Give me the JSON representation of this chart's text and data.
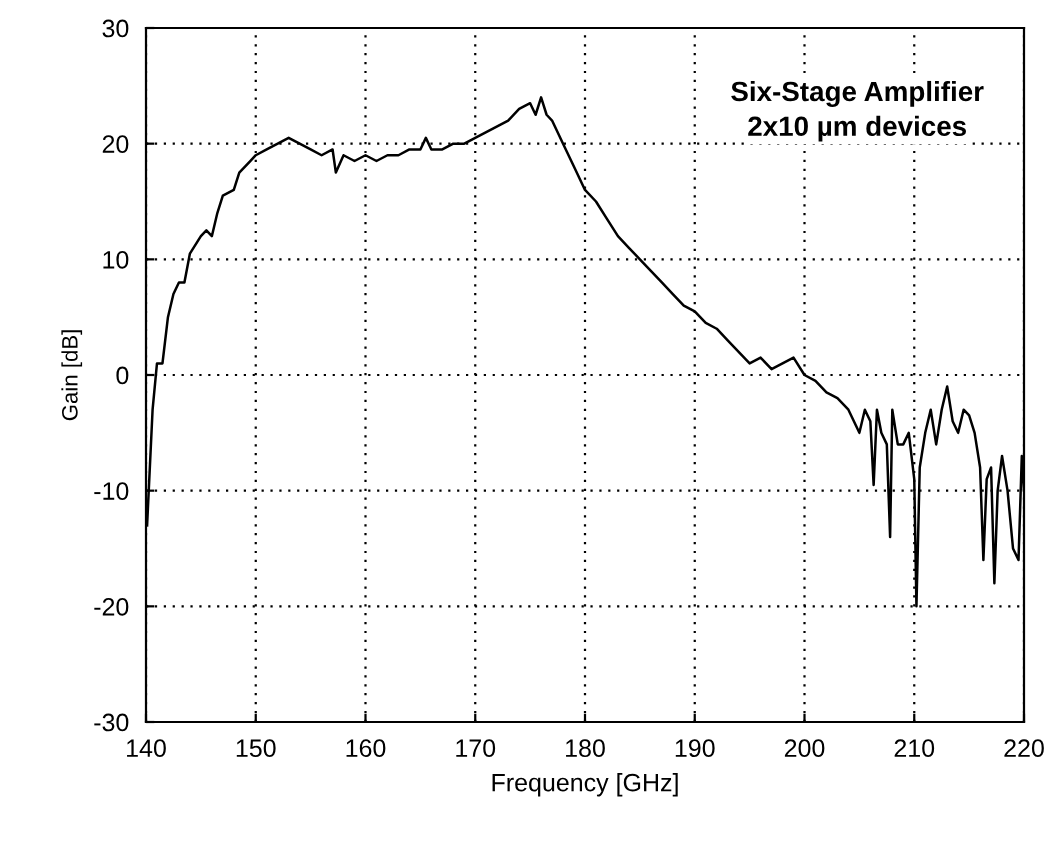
{
  "chart_data": {
    "type": "line",
    "xlabel": "Frequency [GHz]",
    "ylabel": "Gain [dB]",
    "annotations": [
      "Six-Stage Amplifier",
      "2x10 µm devices"
    ],
    "xlim": [
      140,
      220
    ],
    "xticks": [
      140,
      150,
      160,
      170,
      180,
      190,
      200,
      210,
      220
    ],
    "ylim": [
      -30,
      30
    ],
    "yticks": [
      -30,
      -20,
      -10,
      0,
      10,
      20,
      30
    ],
    "grid": true,
    "line_style": "solid",
    "marker": "none",
    "series": [
      {
        "color": "#000000",
        "x": [
          140.1,
          140.6,
          141,
          141.5,
          142,
          142.5,
          143,
          143.5,
          144,
          145,
          145.5,
          146,
          146.5,
          147,
          148,
          148.5,
          149.5,
          150,
          151,
          152,
          153,
          154,
          155,
          156,
          157,
          157.3,
          158,
          159,
          160,
          161,
          162,
          163,
          164,
          165,
          165.5,
          166,
          167,
          168,
          169,
          170,
          171,
          172,
          173,
          174,
          175,
          175.5,
          176,
          176.5,
          177,
          178,
          179,
          180,
          181,
          182,
          183,
          184,
          185,
          186,
          187,
          188,
          189,
          190,
          191,
          192,
          193,
          194,
          195,
          196,
          197,
          198,
          199,
          200,
          201,
          202,
          203,
          204,
          205,
          205.5,
          206,
          206.3,
          206.6,
          207,
          207.5,
          207.8,
          208,
          208.5,
          209,
          209.5,
          210,
          210.2,
          210.5,
          211,
          211.5,
          212,
          212.5,
          213,
          213.5,
          214,
          214.5,
          215,
          215.5,
          216,
          216.3,
          216.6,
          217,
          217.3,
          217.6,
          218,
          218.5,
          219,
          219.5,
          219.8,
          220
        ],
        "values": [
          -13,
          -3,
          1,
          1,
          5,
          7,
          8,
          8,
          10.5,
          12,
          12.5,
          12,
          14,
          15.5,
          16,
          17.5,
          18.5,
          19,
          19.5,
          20,
          20.5,
          20,
          19.5,
          19,
          19.5,
          17.5,
          19,
          18.5,
          19,
          18.5,
          19,
          19,
          19.5,
          19.5,
          20.5,
          19.5,
          19.5,
          20,
          20,
          20.5,
          21,
          21.5,
          22,
          23,
          23.5,
          22.5,
          24,
          22.5,
          22,
          20,
          18,
          16,
          15,
          13.5,
          12,
          11,
          10,
          9,
          8,
          7,
          6,
          5.5,
          4.5,
          4,
          3,
          2,
          1,
          1.5,
          0.5,
          1,
          1.5,
          0,
          -0.5,
          -1.5,
          -2,
          -3,
          -5,
          -3,
          -4,
          -9.5,
          -3,
          -5,
          -6,
          -14,
          -3,
          -6,
          -6,
          -5,
          -9,
          -20,
          -8,
          -5,
          -3,
          -6,
          -3,
          -1,
          -4,
          -5,
          -3,
          -3.5,
          -5,
          -8,
          -16,
          -9,
          -8,
          -18,
          -10,
          -7,
          -10,
          -15,
          -16,
          -7,
          -10
        ]
      }
    ]
  }
}
